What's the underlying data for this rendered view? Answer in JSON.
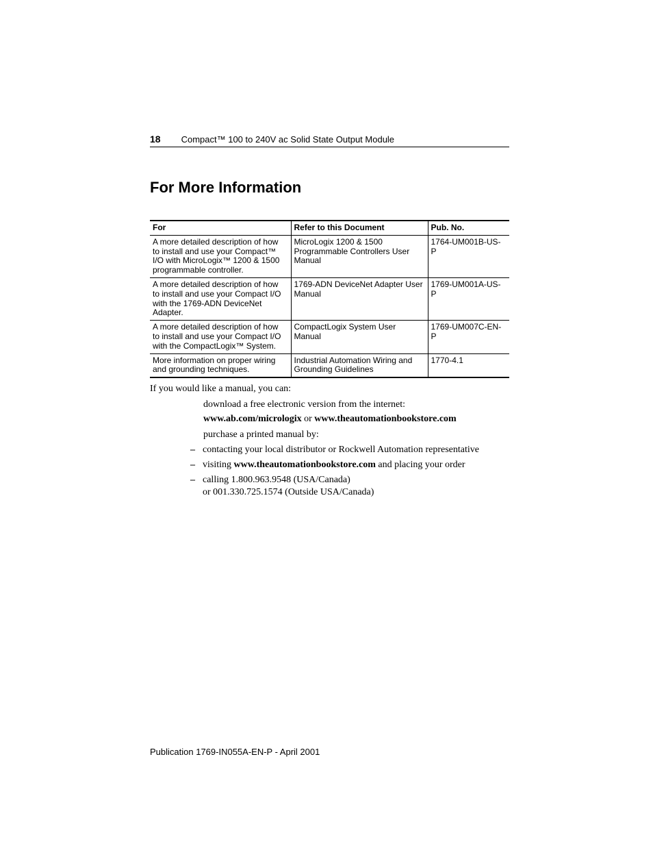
{
  "header": {
    "page_number": "18",
    "running_title": "Compact™ 100 to 240V ac Solid State Output Module"
  },
  "section": {
    "title": "For More Information"
  },
  "table": {
    "columns": [
      "For",
      "Refer to this Document",
      "Pub. No."
    ],
    "rows": [
      {
        "for": "A more detailed description of how to install and use your Compact™ I/O with MicroLogix™ 1200 & 1500 programmable controller.",
        "doc": "MicroLogix 1200 & 1500 Programmable Controllers User Manual",
        "pub": "1764-UM001B-US-P"
      },
      {
        "for": "A more detailed description of how to install and use your Compact I/O with the 1769-ADN DeviceNet Adapter.",
        "doc": "1769-ADN DeviceNet Adapter User Manual",
        "pub": "1769-UM001A-US-P"
      },
      {
        "for": "A more detailed description of how to install and use your Compact I/O with the CompactLogix™ System.",
        "doc": "CompactLogix System User Manual",
        "pub": "1769-UM007C-EN-P"
      },
      {
        "for": "More information on proper wiring and grounding techniques.",
        "doc": "Industrial Automation Wiring and Grounding Guidelines",
        "pub": "1770-4.1"
      }
    ]
  },
  "body": {
    "intro": "If you would like a manual, you can:",
    "download_line": "download a free electronic version from the internet:",
    "link1": "www.ab.com/micrologix",
    "or_word": " or ",
    "link2": "www.theautomationbookstore.com",
    "purchase_line": "purchase a printed manual by:",
    "sub": {
      "item1": "contacting your local distributor or Rockwell Automation representative",
      "item2_prefix": "visiting ",
      "item2_bold": "www.theautomationbookstore.com",
      "item2_suffix": " and placing your order",
      "item3_line1": "calling 1.800.963.9548 (USA/Canada)",
      "item3_line2": "or 001.330.725.1574 (Outside USA/Canada)"
    }
  },
  "footer": {
    "text": "Publication 1769-IN055A-EN-P - April 2001"
  }
}
